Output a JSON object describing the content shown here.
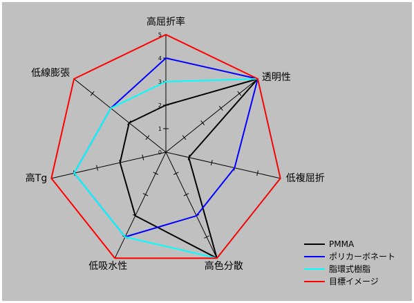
{
  "chart_data": {
    "type": "radar",
    "title": "",
    "axes": [
      "高屈折率",
      "透明性",
      "低複屈折",
      "高色分散",
      "低吸水性",
      "高Tg",
      "低線膨張"
    ],
    "rmin": 0,
    "rmax": 5,
    "ticks": [
      "0",
      "1",
      "2",
      "3",
      "4",
      "5"
    ],
    "grid": true,
    "legend_position": "bottom-right",
    "background": "#c0c0c0",
    "series": [
      {
        "name": "PMMA",
        "color": "#000000",
        "values": [
          2,
          5,
          1,
          5,
          3,
          2,
          2
        ]
      },
      {
        "name": "ポリカーボネート",
        "color": "#0000ff",
        "values": [
          4,
          5,
          3,
          3,
          4,
          4,
          3
        ]
      },
      {
        "name": "脂環式樹脂",
        "color": "#00ffff",
        "values": [
          3,
          5,
          5,
          5,
          4,
          4,
          3
        ]
      },
      {
        "name": "目標イメージ",
        "color": "#ff0000",
        "values": [
          5,
          5,
          5,
          5,
          5,
          5,
          5
        ]
      }
    ]
  }
}
